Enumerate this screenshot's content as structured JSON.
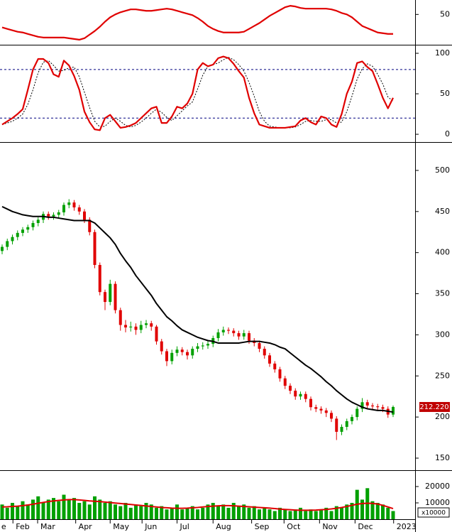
{
  "chart_data": [
    {
      "type": "line",
      "ylim": [
        8,
        70
      ],
      "yticks": [
        50
      ],
      "series": [
        {
          "color": "#e00000",
          "values": [
            32,
            30,
            28,
            26,
            25,
            23,
            21,
            19,
            18,
            18,
            18,
            18,
            18,
            17,
            16,
            15,
            17,
            22,
            27,
            33,
            40,
            46,
            50,
            53,
            55,
            57,
            57,
            56,
            55,
            55,
            56,
            57,
            58,
            57,
            55,
            53,
            51,
            49,
            45,
            40,
            34,
            30,
            27,
            25,
            25,
            25,
            25,
            26,
            30,
            34,
            38,
            43,
            48,
            52,
            56,
            60,
            62,
            61,
            59,
            58,
            58,
            58,
            58,
            58,
            57,
            55,
            52,
            50,
            46,
            40,
            34,
            31,
            28,
            25,
            24,
            23,
            23
          ]
        }
      ]
    },
    {
      "type": "line",
      "ylim": [
        -9.6,
        108.8
      ],
      "yticks": [
        100,
        50,
        0
      ],
      "levels": [
        80,
        20
      ],
      "series": [
        {
          "color": "#000000",
          "dashed": true,
          "values": [
            12,
            14,
            16,
            20,
            25,
            37,
            55,
            76,
            89,
            91,
            85,
            78,
            79,
            82,
            83,
            71,
            52,
            33,
            16,
            9,
            10,
            16,
            20,
            16,
            11,
            9,
            11,
            15,
            20,
            26,
            31,
            27,
            21,
            17,
            23,
            29,
            35,
            40,
            56,
            73,
            84,
            86,
            88,
            92,
            95,
            92,
            86,
            78,
            64,
            47,
            28,
            16,
            10,
            9,
            8,
            8,
            8,
            9,
            12,
            16,
            17,
            16,
            16,
            18,
            18,
            14,
            15,
            28,
            47,
            68,
            81,
            87,
            84,
            74,
            62,
            46,
            41
          ]
        },
        {
          "color": "#e00000",
          "values": [
            12,
            16,
            20,
            25,
            31,
            55,
            80,
            93,
            93,
            88,
            74,
            71,
            91,
            85,
            72,
            55,
            28,
            15,
            6,
            5,
            20,
            24,
            16,
            8,
            9,
            11,
            14,
            20,
            26,
            32,
            34,
            14,
            14,
            22,
            34,
            32,
            38,
            50,
            80,
            88,
            84,
            86,
            94,
            96,
            94,
            87,
            78,
            70,
            45,
            26,
            12,
            10,
            8,
            8,
            8,
            8,
            9,
            10,
            17,
            20,
            15,
            12,
            22,
            20,
            12,
            9,
            25,
            50,
            65,
            88,
            90,
            83,
            78,
            62,
            45,
            32,
            45
          ]
        }
      ]
    },
    {
      "type": "candlestick",
      "ylim": [
        135.3,
        534.5
      ],
      "yticks": [
        500,
        450,
        400,
        350,
        300,
        250,
        200,
        150
      ],
      "up_color": "#00a000",
      "down_color": "#e00000",
      "open": [
        402,
        407,
        414,
        419,
        424,
        428,
        431,
        436,
        440,
        447,
        444,
        446,
        449,
        458,
        461,
        455,
        450,
        440,
        425,
        385,
        352,
        340,
        362,
        330,
        312,
        309,
        310,
        306,
        312,
        314,
        310,
        292,
        280,
        268,
        278,
        282,
        279,
        275,
        283,
        286,
        287,
        289,
        296,
        303,
        306,
        305,
        302,
        298,
        302,
        293,
        290,
        283,
        275,
        265,
        258,
        247,
        238,
        232,
        225,
        228,
        222,
        212,
        210,
        208,
        205,
        198,
        182,
        188,
        195,
        200,
        210,
        218,
        214,
        213,
        212,
        210,
        203
      ],
      "high": [
        410,
        417,
        422,
        427,
        431,
        434,
        439,
        443,
        450,
        450,
        449,
        452,
        461,
        465,
        464,
        458,
        453,
        443,
        428,
        388,
        355,
        367,
        365,
        333,
        318,
        316,
        314,
        317,
        318,
        317,
        312,
        295,
        283,
        282,
        286,
        285,
        282,
        286,
        290,
        291,
        293,
        299,
        307,
        310,
        309,
        308,
        305,
        306,
        305,
        296,
        293,
        286,
        278,
        268,
        261,
        250,
        241,
        235,
        231,
        231,
        225,
        215,
        213,
        211,
        208,
        201,
        191,
        198,
        203,
        213,
        223,
        221,
        217,
        216,
        215,
        213,
        214
      ],
      "low": [
        398,
        403,
        410,
        415,
        420,
        424,
        427,
        432,
        436,
        440,
        440,
        442,
        445,
        454,
        451,
        446,
        436,
        421,
        381,
        348,
        330,
        336,
        326,
        305,
        303,
        304,
        300,
        302,
        308,
        305,
        288,
        276,
        262,
        264,
        274,
        275,
        270,
        271,
        279,
        282,
        283,
        285,
        292,
        299,
        301,
        298,
        294,
        294,
        289,
        286,
        279,
        271,
        261,
        254,
        243,
        234,
        228,
        221,
        221,
        218,
        208,
        206,
        204,
        200,
        194,
        172,
        178,
        184,
        191,
        196,
        206,
        210,
        209,
        208,
        206,
        199,
        200
      ],
      "close": [
        407,
        414,
        419,
        424,
        428,
        431,
        436,
        440,
        447,
        444,
        446,
        449,
        458,
        461,
        455,
        450,
        440,
        425,
        385,
        352,
        340,
        362,
        330,
        312,
        309,
        310,
        306,
        312,
        314,
        310,
        292,
        280,
        268,
        278,
        282,
        279,
        275,
        283,
        286,
        287,
        289,
        296,
        303,
        306,
        305,
        302,
        298,
        302,
        293,
        290,
        283,
        275,
        265,
        258,
        247,
        238,
        232,
        225,
        228,
        222,
        212,
        210,
        208,
        205,
        198,
        182,
        188,
        195,
        200,
        210,
        218,
        214,
        213,
        212,
        210,
        203,
        212.22
      ],
      "last_value_label": "212.220",
      "lines": [
        {
          "color": "#000000",
          "values": [
            456,
            453,
            450,
            448,
            446,
            445,
            444,
            444,
            444,
            443,
            443,
            442,
            441,
            440,
            439,
            439,
            439,
            439,
            436,
            430,
            424,
            418,
            410,
            399,
            390,
            382,
            372,
            364,
            356,
            348,
            338,
            330,
            322,
            317,
            311,
            306,
            303,
            300,
            297,
            295,
            293,
            292,
            290,
            290,
            290,
            290,
            290,
            291,
            292,
            292,
            292,
            291,
            290,
            288,
            285,
            283,
            278,
            273,
            268,
            263,
            259,
            254,
            249,
            243,
            238,
            232,
            227,
            222,
            218,
            215,
            212,
            210,
            209,
            208,
            208,
            207,
            206
          ]
        }
      ]
    },
    {
      "type": "bar",
      "ylim": [
        0,
        30000
      ],
      "yticks": [
        20000,
        10000
      ],
      "unit_label": "x10000",
      "color": "#00a000",
      "values": [
        9000,
        7000,
        10000,
        8000,
        11000,
        9000,
        12000,
        14000,
        10000,
        12000,
        13000,
        11000,
        15000,
        12000,
        13000,
        10000,
        11000,
        9000,
        14000,
        12000,
        10000,
        11000,
        9000,
        8000,
        10000,
        7000,
        9000,
        8000,
        10000,
        9000,
        7000,
        8000,
        6000,
        7000,
        9000,
        6000,
        7000,
        8000,
        6000,
        7000,
        9000,
        10000,
        8000,
        9000,
        7000,
        10000,
        8000,
        9000,
        7000,
        8000,
        6000,
        7000,
        6000,
        5000,
        7000,
        6000,
        5000,
        6000,
        7000,
        5000,
        6000,
        5000,
        6000,
        7000,
        5000,
        8000,
        7000,
        9000,
        10000,
        18000,
        12000,
        19000,
        11000,
        10000,
        9000,
        7000,
        5000
      ],
      "lines": [
        {
          "color": "#e00000",
          "values": [
            7500,
            7600,
            7800,
            8000,
            8300,
            8700,
            9200,
            9800,
            10300,
            10800,
            11200,
            11500,
            11800,
            12000,
            12000,
            11800,
            11500,
            11200,
            11000,
            10800,
            10500,
            10200,
            9900,
            9600,
            9300,
            9000,
            8700,
            8400,
            8100,
            7800,
            7500,
            7200,
            7000,
            6800,
            6700,
            6700,
            6800,
            7000,
            7200,
            7500,
            7800,
            8000,
            8200,
            8300,
            8300,
            8200,
            8000,
            7800,
            7600,
            7400,
            7200,
            7000,
            6800,
            6500,
            6200,
            6000,
            5800,
            5600,
            5500,
            5500,
            5500,
            5600,
            5800,
            6000,
            6300,
            6700,
            7200,
            7800,
            8500,
            9200,
            9600,
            9800,
            9700,
            9300,
            8500,
            7500,
            6500
          ]
        }
      ],
      "xticks": [
        {
          "value": -0.7,
          "label": "e"
        },
        {
          "value": 2.1,
          "label": "Feb"
        },
        {
          "value": 6.9,
          "label": "Mar"
        },
        {
          "value": 14.3,
          "label": "Apr"
        },
        {
          "value": 21,
          "label": "May"
        },
        {
          "value": 27.2,
          "label": "Jun"
        },
        {
          "value": 34,
          "label": "Jul"
        },
        {
          "value": 41,
          "label": "Aug"
        },
        {
          "value": 48.5,
          "label": "Sep"
        },
        {
          "value": 54.8,
          "label": "Oct"
        },
        {
          "value": 61.7,
          "label": "Nov"
        },
        {
          "value": 68.6,
          "label": "Dec"
        },
        {
          "value": 76.1,
          "label": "2023"
        }
      ]
    }
  ]
}
